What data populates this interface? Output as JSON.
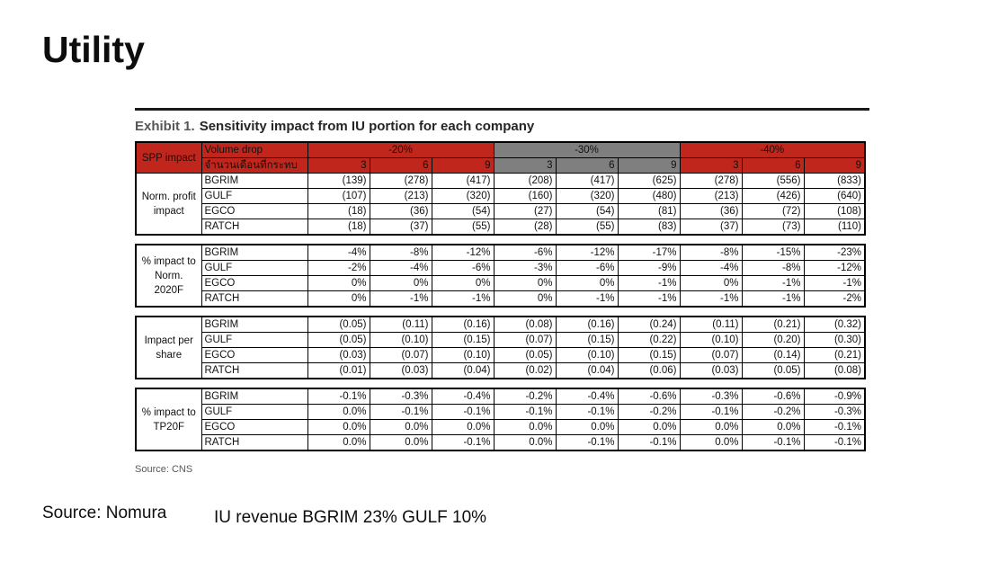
{
  "slide": {
    "title": "Utility",
    "source_left": "Source: Nomura",
    "note": "IU revenue BGRIM 23% GULF 10%"
  },
  "exhibit": {
    "label": "Exhibit 1.",
    "title": "Sensitivity impact from IU portion for each company",
    "source": "Source: CNS"
  },
  "colors": {
    "header_red": "#c0261b",
    "header_gray": "#7f7f7f",
    "header_text": "#ffffff"
  },
  "table": {
    "corner_label": "SPP impact",
    "volume_drop_label": "Volume drop",
    "months_label": "จำนวนเดือนที่กระทบ",
    "months": [
      "3",
      "6",
      "9"
    ],
    "scenarios": [
      {
        "label": "-20%",
        "color": "red"
      },
      {
        "label": "-30%",
        "color": "gray"
      },
      {
        "label": "-40%",
        "color": "red"
      }
    ],
    "groups": [
      {
        "label": "Norm. profit impact",
        "label_lines": [
          "Norm. profit",
          "impact"
        ],
        "rows": [
          {
            "company": "BGRIM",
            "values": [
              "(139)",
              "(278)",
              "(417)",
              "(208)",
              "(417)",
              "(625)",
              "(278)",
              "(556)",
              "(833)"
            ]
          },
          {
            "company": "GULF",
            "values": [
              "(107)",
              "(213)",
              "(320)",
              "(160)",
              "(320)",
              "(480)",
              "(213)",
              "(426)",
              "(640)"
            ]
          },
          {
            "company": "EGCO",
            "values": [
              "(18)",
              "(36)",
              "(54)",
              "(27)",
              "(54)",
              "(81)",
              "(36)",
              "(72)",
              "(108)"
            ]
          },
          {
            "company": "RATCH",
            "values": [
              "(18)",
              "(37)",
              "(55)",
              "(28)",
              "(55)",
              "(83)",
              "(37)",
              "(73)",
              "(110)"
            ]
          }
        ]
      },
      {
        "label": "% impact to Norm. 2020F",
        "label_lines": [
          "% impact to",
          "Norm.",
          "2020F"
        ],
        "rows": [
          {
            "company": "BGRIM",
            "values": [
              "-4%",
              "-8%",
              "-12%",
              "-6%",
              "-12%",
              "-17%",
              "-8%",
              "-15%",
              "-23%"
            ]
          },
          {
            "company": "GULF",
            "values": [
              "-2%",
              "-4%",
              "-6%",
              "-3%",
              "-6%",
              "-9%",
              "-4%",
              "-8%",
              "-12%"
            ]
          },
          {
            "company": "EGCO",
            "values": [
              "0%",
              "0%",
              "0%",
              "0%",
              "0%",
              "-1%",
              "0%",
              "-1%",
              "-1%"
            ]
          },
          {
            "company": "RATCH",
            "values": [
              "0%",
              "-1%",
              "-1%",
              "0%",
              "-1%",
              "-1%",
              "-1%",
              "-1%",
              "-2%"
            ]
          }
        ]
      },
      {
        "label": "Impact per share",
        "label_lines": [
          "Impact per",
          "share"
        ],
        "rows": [
          {
            "company": "BGRIM",
            "values": [
              "(0.05)",
              "(0.11)",
              "(0.16)",
              "(0.08)",
              "(0.16)",
              "(0.24)",
              "(0.11)",
              "(0.21)",
              "(0.32)"
            ]
          },
          {
            "company": "GULF",
            "values": [
              "(0.05)",
              "(0.10)",
              "(0.15)",
              "(0.07)",
              "(0.15)",
              "(0.22)",
              "(0.10)",
              "(0.20)",
              "(0.30)"
            ]
          },
          {
            "company": "EGCO",
            "values": [
              "(0.03)",
              "(0.07)",
              "(0.10)",
              "(0.05)",
              "(0.10)",
              "(0.15)",
              "(0.07)",
              "(0.14)",
              "(0.21)"
            ]
          },
          {
            "company": "RATCH",
            "values": [
              "(0.01)",
              "(0.03)",
              "(0.04)",
              "(0.02)",
              "(0.04)",
              "(0.06)",
              "(0.03)",
              "(0.05)",
              "(0.08)"
            ]
          }
        ]
      },
      {
        "label": "% impact to TP20F",
        "label_lines": [
          "% impact to",
          "TP20F"
        ],
        "rows": [
          {
            "company": "BGRIM",
            "values": [
              "-0.1%",
              "-0.3%",
              "-0.4%",
              "-0.2%",
              "-0.4%",
              "-0.6%",
              "-0.3%",
              "-0.6%",
              "-0.9%"
            ]
          },
          {
            "company": "GULF",
            "values": [
              "0.0%",
              "-0.1%",
              "-0.1%",
              "-0.1%",
              "-0.1%",
              "-0.2%",
              "-0.1%",
              "-0.2%",
              "-0.3%"
            ]
          },
          {
            "company": "EGCO",
            "values": [
              "0.0%",
              "0.0%",
              "0.0%",
              "0.0%",
              "0.0%",
              "0.0%",
              "0.0%",
              "0.0%",
              "-0.1%"
            ]
          },
          {
            "company": "RATCH",
            "values": [
              "0.0%",
              "0.0%",
              "-0.1%",
              "0.0%",
              "-0.1%",
              "-0.1%",
              "0.0%",
              "-0.1%",
              "-0.1%"
            ]
          }
        ]
      }
    ]
  }
}
